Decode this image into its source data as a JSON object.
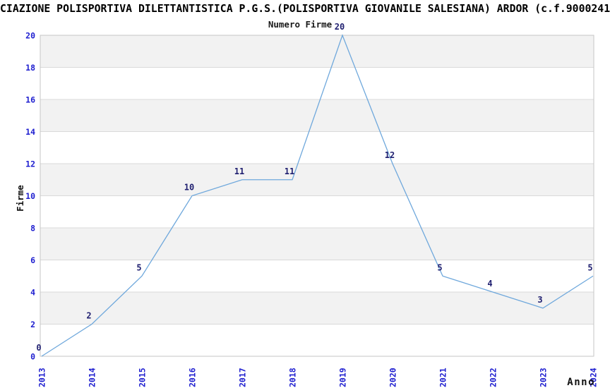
{
  "header": {
    "title": "CIAZIONE POLISPORTIVA DILETTANTISTICA P.G.S.(POLISPORTIVA GIOVANILE SALESIANA) ARDOR (c.f.9000241",
    "subtitle": "Numero Firme"
  },
  "chart_data": {
    "type": "line",
    "title": "Numero Firme",
    "categories": [
      "2013",
      "2014",
      "2015",
      "2016",
      "2017",
      "2018",
      "2019",
      "2020",
      "2021",
      "2022",
      "2023",
      "2024"
    ],
    "values": [
      0,
      2,
      5,
      10,
      11,
      11,
      20,
      12,
      5,
      4,
      3,
      5
    ],
    "point_labels": [
      "0",
      "2",
      "5",
      "10",
      "11",
      "11",
      "20",
      "12",
      "5",
      "4",
      "3",
      "5"
    ],
    "xlabel": "Anno",
    "ylabel": "Firme",
    "ylim": [
      0,
      20
    ],
    "ytick_step": 2,
    "yticks": [
      "0",
      "2",
      "4",
      "6",
      "8",
      "10",
      "12",
      "14",
      "16",
      "18",
      "20"
    ],
    "grid": "horizontal-bands",
    "legend": "none",
    "colors": {
      "line": "#6fa8dc",
      "tick_label_blue": "#2020d0",
      "point_label_navy": "#1f1f70",
      "band_gray": "#f2f2f2",
      "gridline": "#d9d9d9",
      "plot_border": "#c6c6c6",
      "axis_title_text": "#111111",
      "title_text": "#000000"
    }
  }
}
